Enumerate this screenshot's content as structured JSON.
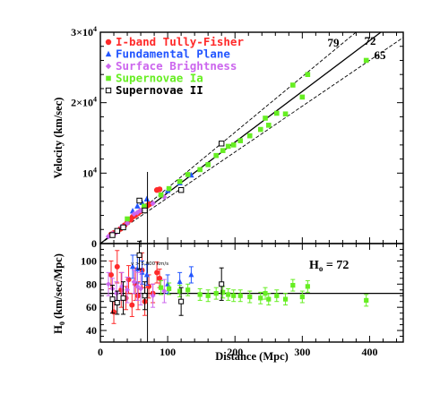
{
  "chart_data": [
    {
      "type": "scatter",
      "panel": "top",
      "xlim": [
        0,
        450
      ],
      "ylim": [
        0,
        30000
      ],
      "xticks": [
        0,
        100,
        200,
        300,
        400
      ],
      "yticks": [
        {
          "value": 0,
          "base": "0",
          "exp": ""
        },
        {
          "value": 10000,
          "base": "10",
          "exp": "4"
        },
        {
          "value": 20000,
          "base": "2×10",
          "exp": "4"
        },
        {
          "value": 30000,
          "base": "3×10",
          "exp": "4"
        }
      ],
      "ylabel": "Velocity (km/sec)",
      "grid": false,
      "legend_position": "top-left",
      "series": [
        {
          "name": "I-band Tully-Fisher",
          "marker": "circle",
          "color": "#ff2a2a",
          "points": [
            [
              16,
              1300
            ],
            [
              20,
              1500
            ],
            [
              26,
              1800
            ],
            [
              30,
              2100
            ],
            [
              36,
              2600
            ],
            [
              40,
              3000
            ],
            [
              45,
              3400
            ],
            [
              48,
              3800
            ],
            [
              52,
              4000
            ],
            [
              56,
              4300
            ],
            [
              60,
              4600
            ],
            [
              65,
              5000
            ],
            [
              70,
              5400
            ],
            [
              73,
              5600
            ],
            [
              84,
              7600
            ],
            [
              88,
              7700
            ]
          ]
        },
        {
          "name": "Fundamental Plane",
          "marker": "triangle",
          "color": "#2255ff",
          "points": [
            [
              48,
              4600
            ],
            [
              55,
              5300
            ],
            [
              62,
              5800
            ],
            [
              69,
              6300
            ],
            [
              100,
              7500
            ],
            [
              118,
              8600
            ],
            [
              135,
              9700
            ]
          ]
        },
        {
          "name": "Surface Brightness",
          "marker": "diamond",
          "color": "#cc66ee",
          "points": [
            [
              12,
              1000
            ],
            [
              18,
              1400
            ],
            [
              24,
              1600
            ],
            [
              32,
              2400
            ],
            [
              40,
              2900
            ],
            [
              50,
              4200
            ],
            [
              55,
              4400
            ],
            [
              60,
              4700
            ],
            [
              78,
              5700
            ],
            [
              95,
              6600
            ]
          ]
        },
        {
          "name": "Supernovae Ia",
          "marker": "square",
          "color": "#66ee22",
          "points": [
            [
              40,
              3500
            ],
            [
              65,
              5300
            ],
            [
              90,
              6900
            ],
            [
              102,
              7800
            ],
            [
              118,
              8800
            ],
            [
              130,
              9800
            ],
            [
              148,
              10500
            ],
            [
              160,
              11200
            ],
            [
              172,
              12500
            ],
            [
              182,
              13200
            ],
            [
              190,
              13800
            ],
            [
              198,
              14000
            ],
            [
              208,
              14600
            ],
            [
              222,
              15300
            ],
            [
              238,
              16200
            ],
            [
              245,
              17800
            ],
            [
              250,
              16800
            ],
            [
              262,
              18500
            ],
            [
              275,
              18400
            ],
            [
              286,
              22500
            ],
            [
              300,
              20800
            ],
            [
              308,
              24000
            ],
            [
              395,
              26000
            ]
          ]
        },
        {
          "name": "Supernovae II",
          "marker": "open-square",
          "color": "#000000",
          "points": [
            [
              18,
              1200
            ],
            [
              25,
              1800
            ],
            [
              34,
              2300
            ],
            [
              58,
              6100
            ],
            [
              66,
              4700
            ],
            [
              120,
              7600
            ],
            [
              180,
              14200
            ]
          ]
        }
      ],
      "fit_lines": [
        {
          "label": "79",
          "slope": 79
        },
        {
          "label": "72",
          "slope": 72
        },
        {
          "label": "65",
          "slope": 65
        }
      ]
    },
    {
      "type": "scatter",
      "panel": "bottom",
      "xlim": [
        0,
        450
      ],
      "ylim": [
        30,
        115
      ],
      "xticks": [
        0,
        100,
        200,
        300,
        400
      ],
      "yticks": [
        40,
        60,
        80,
        100
      ],
      "xlabel": "Distance (Mpc)",
      "ylabel_base": "H",
      "ylabel_sub": "0",
      "ylabel_rest": " (km/sec/Mpc)",
      "annotation": "H",
      "annotation_sub": "o",
      "annotation_rest": " = 72",
      "note": "v > 5,000 km/s",
      "reference_line": 72,
      "vertical_marker_x": 70,
      "series": [
        {
          "name": "I-band Tully-Fisher",
          "marker": "circle",
          "color": "#ff2a2a",
          "points": [
            [
              16,
              88,
              12
            ],
            [
              20,
              56,
              10
            ],
            [
              25,
              95,
              14
            ],
            [
              31,
              75,
              15
            ],
            [
              38,
              68,
              10
            ],
            [
              42,
              84,
              12
            ],
            [
              47,
              62,
              10
            ],
            [
              52,
              80,
              14
            ],
            [
              56,
              70,
              12
            ],
            [
              62,
              92,
              15
            ],
            [
              66,
              65,
              12
            ],
            [
              72,
              78,
              10
            ],
            [
              78,
              72,
              8
            ],
            [
              84,
              90,
              9
            ],
            [
              88,
              85,
              8
            ]
          ]
        },
        {
          "name": "Fundamental Plane",
          "marker": "triangle",
          "color": "#2255ff",
          "points": [
            [
              48,
              95,
              10
            ],
            [
              55,
              93,
              12
            ],
            [
              62,
              90,
              10
            ],
            [
              69,
              88,
              9
            ],
            [
              100,
              80,
              8
            ],
            [
              118,
              82,
              8
            ],
            [
              135,
              88,
              7
            ]
          ]
        },
        {
          "name": "Surface Brightness",
          "marker": "diamond",
          "color": "#cc66ee",
          "points": [
            [
              12,
              80,
              10
            ],
            [
              18,
              76,
              9
            ],
            [
              24,
              72,
              10
            ],
            [
              32,
              78,
              12
            ],
            [
              40,
              75,
              11
            ],
            [
              50,
              82,
              10
            ],
            [
              55,
              78,
              12
            ],
            [
              60,
              76,
              14
            ],
            [
              78,
              70,
              10
            ],
            [
              95,
              74,
              10
            ]
          ]
        },
        {
          "name": "Supernovae Ia",
          "marker": "square",
          "color": "#66ee22",
          "points": [
            [
              90,
              77,
              6
            ],
            [
              102,
              76,
              5
            ],
            [
              118,
              74,
              5
            ],
            [
              130,
              75,
              5
            ],
            [
              148,
              71,
              5
            ],
            [
              160,
              70,
              5
            ],
            [
              172,
              72,
              5
            ],
            [
              182,
              73,
              5
            ],
            [
              190,
              71,
              5
            ],
            [
              198,
              70,
              5
            ],
            [
              208,
              70,
              5
            ],
            [
              222,
              69,
              5
            ],
            [
              238,
              68,
              5
            ],
            [
              245,
              72,
              5
            ],
            [
              250,
              67,
              5
            ],
            [
              262,
              70,
              5
            ],
            [
              275,
              67,
              5
            ],
            [
              286,
              79,
              5
            ],
            [
              300,
              69,
              5
            ],
            [
              308,
              78,
              5
            ],
            [
              395,
              66,
              5
            ]
          ]
        },
        {
          "name": "Supernovae II",
          "marker": "open-square",
          "color": "#000000",
          "points": [
            [
              18,
              67,
              12
            ],
            [
              25,
              64,
              10
            ],
            [
              34,
              68,
              14
            ],
            [
              58,
              105,
              12
            ],
            [
              66,
              70,
              12
            ],
            [
              120,
              65,
              12
            ],
            [
              180,
              80,
              14
            ]
          ]
        }
      ]
    }
  ]
}
